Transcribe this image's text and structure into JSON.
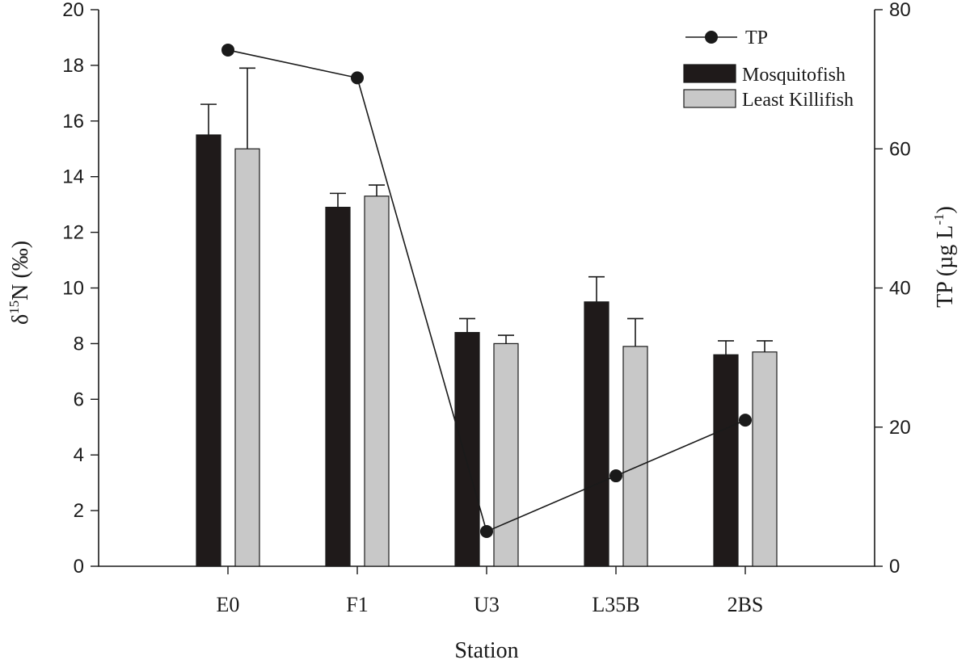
{
  "chart_data": {
    "type": "bar",
    "xlabel": "Station",
    "ylabel_left": {
      "main": "δ",
      "sup": "15",
      "rest": "N (‰)"
    },
    "ylabel_right": {
      "main": "TP (µg L",
      "sup": "-1",
      "rest": ")"
    },
    "categories": [
      "E0",
      "F1",
      "U3",
      "L35B",
      "2BS"
    ],
    "ylim_left": [
      0,
      20
    ],
    "yticks_left": [
      "0",
      "2",
      "4",
      "6",
      "8",
      "10",
      "12",
      "14",
      "16",
      "18",
      "20"
    ],
    "ylim_right": [
      0,
      80
    ],
    "yticks_right": [
      "0",
      "20",
      "40",
      "60",
      "80"
    ],
    "legend_position": "top-right",
    "series": [
      {
        "name": "Mosquitofish",
        "kind": "bar",
        "axis": "left",
        "color": "#1f1a1a",
        "values": [
          15.5,
          12.9,
          8.4,
          9.5,
          7.6
        ],
        "error": [
          1.1,
          0.5,
          0.5,
          0.9,
          0.5
        ]
      },
      {
        "name": "Least Killifish",
        "kind": "bar",
        "axis": "left",
        "color": "#c8c8c8",
        "values": [
          15.0,
          13.3,
          8.0,
          7.9,
          7.7
        ],
        "error": [
          2.9,
          0.4,
          0.3,
          1.0,
          0.4
        ]
      },
      {
        "name": "TP",
        "kind": "line",
        "axis": "right",
        "color": "#1a1a1a",
        "values": [
          74.2,
          70.2,
          5.0,
          13.0,
          21.0
        ]
      }
    ]
  }
}
